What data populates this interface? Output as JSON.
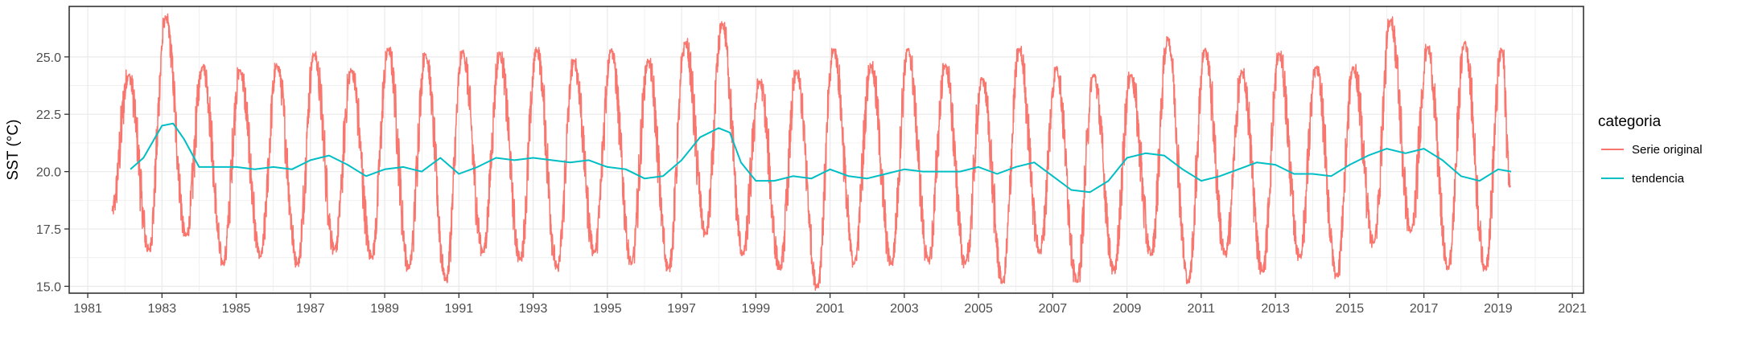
{
  "chart_data": {
    "type": "line",
    "title": "",
    "xlabel": "",
    "ylabel": "SST (°C)",
    "xlim": [
      1980.5,
      2021.3
    ],
    "ylim": [
      14.7,
      27.2
    ],
    "x_ticks": [
      "1981",
      "1983",
      "1985",
      "1987",
      "1989",
      "1991",
      "1993",
      "1995",
      "1997",
      "1999",
      "2001",
      "2003",
      "2005",
      "2007",
      "2009",
      "2011",
      "2013",
      "2015",
      "2017",
      "2019",
      "2021"
    ],
    "y_ticks": [
      "15.0",
      "17.5",
      "20.0",
      "22.5",
      "25.0"
    ],
    "grid": true,
    "legend": {
      "title": "categoria",
      "placement": "right",
      "entries": [
        "Serie original",
        "tendencia"
      ]
    },
    "series": [
      {
        "name": "Serie original",
        "color": "#F8766D",
        "kind": "daily seasonal series, values read as yearly peaks (early-year) and troughs (mid-year)",
        "start": 1981.65,
        "start_value": 18.3,
        "end": 2019.33,
        "end_value": 19.4,
        "peaks": [
          {
            "x": 1982.1,
            "y": 24.2
          },
          {
            "x": 1983.1,
            "y": 26.7
          },
          {
            "x": 1984.1,
            "y": 24.6
          },
          {
            "x": 1985.1,
            "y": 24.4
          },
          {
            "x": 1986.1,
            "y": 24.6
          },
          {
            "x": 1987.1,
            "y": 25.1
          },
          {
            "x": 1988.1,
            "y": 24.4
          },
          {
            "x": 1989.1,
            "y": 25.3
          },
          {
            "x": 1990.1,
            "y": 25.1
          },
          {
            "x": 1991.1,
            "y": 25.2
          },
          {
            "x": 1992.1,
            "y": 25.1
          },
          {
            "x": 1993.1,
            "y": 25.3
          },
          {
            "x": 1994.1,
            "y": 24.8
          },
          {
            "x": 1995.1,
            "y": 25.3
          },
          {
            "x": 1996.1,
            "y": 24.8
          },
          {
            "x": 1997.1,
            "y": 25.6
          },
          {
            "x": 1998.1,
            "y": 26.4
          },
          {
            "x": 1999.1,
            "y": 23.9
          },
          {
            "x": 2000.1,
            "y": 24.3
          },
          {
            "x": 2001.1,
            "y": 25.3
          },
          {
            "x": 2002.1,
            "y": 24.6
          },
          {
            "x": 2003.1,
            "y": 25.3
          },
          {
            "x": 2004.1,
            "y": 24.6
          },
          {
            "x": 2005.1,
            "y": 24.0
          },
          {
            "x": 2006.1,
            "y": 25.3
          },
          {
            "x": 2007.1,
            "y": 24.5
          },
          {
            "x": 2008.1,
            "y": 24.2
          },
          {
            "x": 2009.1,
            "y": 24.2
          },
          {
            "x": 2010.1,
            "y": 25.8
          },
          {
            "x": 2011.1,
            "y": 25.3
          },
          {
            "x": 2012.1,
            "y": 24.3
          },
          {
            "x": 2013.1,
            "y": 25.1
          },
          {
            "x": 2014.1,
            "y": 24.5
          },
          {
            "x": 2015.1,
            "y": 24.5
          },
          {
            "x": 2016.1,
            "y": 26.6
          },
          {
            "x": 2017.1,
            "y": 25.4
          },
          {
            "x": 2018.1,
            "y": 25.6
          },
          {
            "x": 2019.1,
            "y": 25.3
          }
        ],
        "troughs": [
          {
            "x": 1981.65,
            "y": 16.8
          },
          {
            "x": 1982.65,
            "y": 16.6
          },
          {
            "x": 1983.65,
            "y": 17.2
          },
          {
            "x": 1984.65,
            "y": 16.0
          },
          {
            "x": 1985.65,
            "y": 16.3
          },
          {
            "x": 1986.65,
            "y": 16.0
          },
          {
            "x": 1987.65,
            "y": 16.6
          },
          {
            "x": 1988.65,
            "y": 16.3
          },
          {
            "x": 1989.65,
            "y": 15.8
          },
          {
            "x": 1990.65,
            "y": 15.3
          },
          {
            "x": 1991.65,
            "y": 16.5
          },
          {
            "x": 1992.65,
            "y": 16.2
          },
          {
            "x": 1993.65,
            "y": 15.8
          },
          {
            "x": 1994.65,
            "y": 16.5
          },
          {
            "x": 1995.65,
            "y": 16.0
          },
          {
            "x": 1996.65,
            "y": 15.8
          },
          {
            "x": 1997.65,
            "y": 17.3
          },
          {
            "x": 1998.65,
            "y": 16.4
          },
          {
            "x": 1999.65,
            "y": 15.8
          },
          {
            "x": 2000.65,
            "y": 15.0
          },
          {
            "x": 2001.65,
            "y": 16.0
          },
          {
            "x": 2002.65,
            "y": 16.0
          },
          {
            "x": 2003.65,
            "y": 16.1
          },
          {
            "x": 2004.65,
            "y": 16.0
          },
          {
            "x": 2005.65,
            "y": 15.2
          },
          {
            "x": 2006.65,
            "y": 16.5
          },
          {
            "x": 2007.65,
            "y": 15.2
          },
          {
            "x": 2008.65,
            "y": 15.7
          },
          {
            "x": 2009.65,
            "y": 16.4
          },
          {
            "x": 2010.65,
            "y": 15.2
          },
          {
            "x": 2011.65,
            "y": 16.4
          },
          {
            "x": 2012.65,
            "y": 15.7
          },
          {
            "x": 2013.65,
            "y": 16.3
          },
          {
            "x": 2014.65,
            "y": 15.5
          },
          {
            "x": 2015.65,
            "y": 16.9
          },
          {
            "x": 2016.65,
            "y": 17.4
          },
          {
            "x": 2017.65,
            "y": 15.8
          },
          {
            "x": 2018.65,
            "y": 15.8
          }
        ]
      },
      {
        "name": "tendencia",
        "color": "#00BFC4",
        "points": [
          {
            "x": 1982.15,
            "y": 20.1
          },
          {
            "x": 1982.5,
            "y": 20.6
          },
          {
            "x": 1983.0,
            "y": 22.0
          },
          {
            "x": 1983.3,
            "y": 22.1
          },
          {
            "x": 1983.6,
            "y": 21.4
          },
          {
            "x": 1984.0,
            "y": 20.2
          },
          {
            "x": 1984.5,
            "y": 20.2
          },
          {
            "x": 1985.0,
            "y": 20.2
          },
          {
            "x": 1985.5,
            "y": 20.1
          },
          {
            "x": 1986.0,
            "y": 20.2
          },
          {
            "x": 1986.5,
            "y": 20.1
          },
          {
            "x": 1987.0,
            "y": 20.5
          },
          {
            "x": 1987.5,
            "y": 20.7
          },
          {
            "x": 1988.0,
            "y": 20.3
          },
          {
            "x": 1988.5,
            "y": 19.8
          },
          {
            "x": 1989.0,
            "y": 20.1
          },
          {
            "x": 1989.5,
            "y": 20.2
          },
          {
            "x": 1990.0,
            "y": 20.0
          },
          {
            "x": 1990.5,
            "y": 20.6
          },
          {
            "x": 1991.0,
            "y": 19.9
          },
          {
            "x": 1991.5,
            "y": 20.2
          },
          {
            "x": 1992.0,
            "y": 20.6
          },
          {
            "x": 1992.5,
            "y": 20.5
          },
          {
            "x": 1993.0,
            "y": 20.6
          },
          {
            "x": 1993.5,
            "y": 20.5
          },
          {
            "x": 1994.0,
            "y": 20.4
          },
          {
            "x": 1994.5,
            "y": 20.5
          },
          {
            "x": 1995.0,
            "y": 20.2
          },
          {
            "x": 1995.5,
            "y": 20.1
          },
          {
            "x": 1996.0,
            "y": 19.7
          },
          {
            "x": 1996.5,
            "y": 19.8
          },
          {
            "x": 1997.0,
            "y": 20.5
          },
          {
            "x": 1997.5,
            "y": 21.5
          },
          {
            "x": 1998.0,
            "y": 21.9
          },
          {
            "x": 1998.3,
            "y": 21.7
          },
          {
            "x": 1998.6,
            "y": 20.4
          },
          {
            "x": 1999.0,
            "y": 19.6
          },
          {
            "x": 1999.5,
            "y": 19.6
          },
          {
            "x": 2000.0,
            "y": 19.8
          },
          {
            "x": 2000.5,
            "y": 19.7
          },
          {
            "x": 2001.0,
            "y": 20.1
          },
          {
            "x": 2001.5,
            "y": 19.8
          },
          {
            "x": 2002.0,
            "y": 19.7
          },
          {
            "x": 2002.5,
            "y": 19.9
          },
          {
            "x": 2003.0,
            "y": 20.1
          },
          {
            "x": 2003.5,
            "y": 20.0
          },
          {
            "x": 2004.0,
            "y": 20.0
          },
          {
            "x": 2004.5,
            "y": 20.0
          },
          {
            "x": 2005.0,
            "y": 20.2
          },
          {
            "x": 2005.5,
            "y": 19.9
          },
          {
            "x": 2006.0,
            "y": 20.2
          },
          {
            "x": 2006.5,
            "y": 20.4
          },
          {
            "x": 2007.0,
            "y": 19.8
          },
          {
            "x": 2007.5,
            "y": 19.2
          },
          {
            "x": 2008.0,
            "y": 19.1
          },
          {
            "x": 2008.5,
            "y": 19.6
          },
          {
            "x": 2009.0,
            "y": 20.6
          },
          {
            "x": 2009.5,
            "y": 20.8
          },
          {
            "x": 2010.0,
            "y": 20.7
          },
          {
            "x": 2010.5,
            "y": 20.1
          },
          {
            "x": 2011.0,
            "y": 19.6
          },
          {
            "x": 2011.5,
            "y": 19.8
          },
          {
            "x": 2012.0,
            "y": 20.1
          },
          {
            "x": 2012.5,
            "y": 20.4
          },
          {
            "x": 2013.0,
            "y": 20.3
          },
          {
            "x": 2013.5,
            "y": 19.9
          },
          {
            "x": 2014.0,
            "y": 19.9
          },
          {
            "x": 2014.5,
            "y": 19.8
          },
          {
            "x": 2015.0,
            "y": 20.3
          },
          {
            "x": 2015.5,
            "y": 20.7
          },
          {
            "x": 2016.0,
            "y": 21.0
          },
          {
            "x": 2016.5,
            "y": 20.8
          },
          {
            "x": 2017.0,
            "y": 21.0
          },
          {
            "x": 2017.5,
            "y": 20.5
          },
          {
            "x": 2018.0,
            "y": 19.8
          },
          {
            "x": 2018.5,
            "y": 19.6
          },
          {
            "x": 2019.0,
            "y": 20.1
          },
          {
            "x": 2019.35,
            "y": 20.0
          }
        ]
      }
    ]
  }
}
